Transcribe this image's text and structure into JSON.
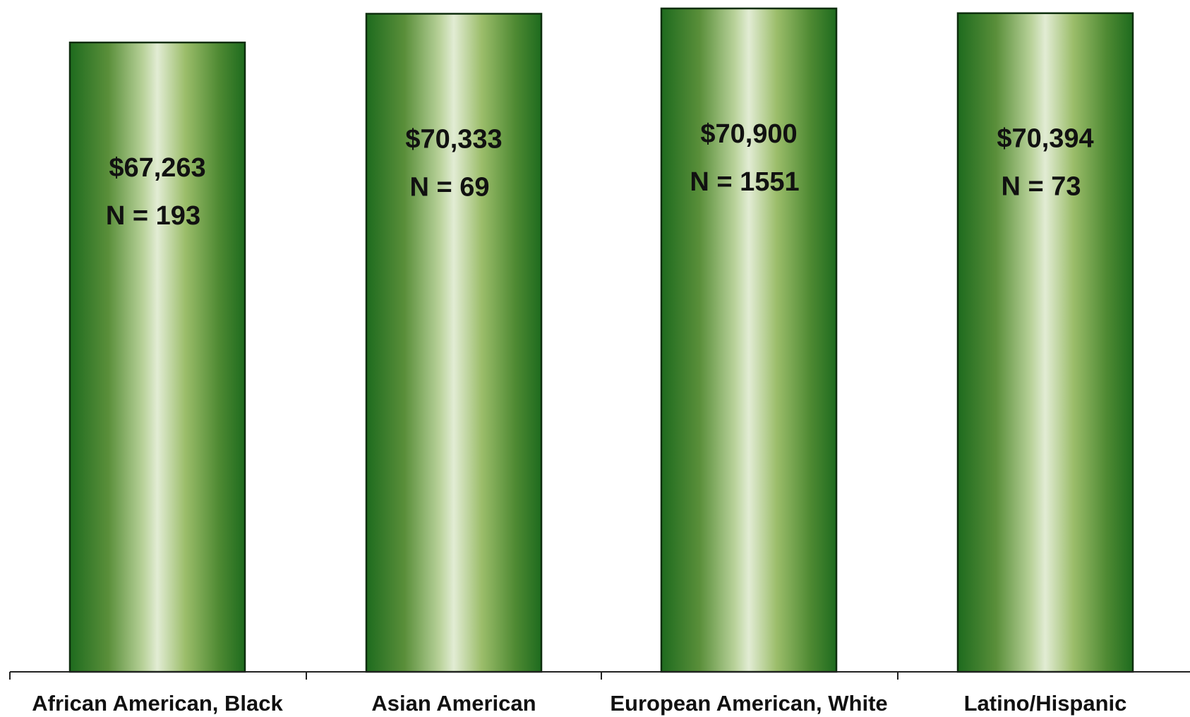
{
  "chart_data": {
    "type": "bar",
    "categories": [
      "African American, Black",
      "Asian American",
      "European American, White",
      "Latino/Hispanic"
    ],
    "values": [
      67263,
      70333,
      70900,
      70394
    ],
    "data_labels": [
      "$67,263",
      "$70,333",
      "$70,900",
      "$70,394"
    ],
    "n_labels": [
      "N = 193",
      "N = 69",
      "N = 1551",
      "N = 73"
    ],
    "title": "",
    "xlabel": "",
    "ylabel": "",
    "ylim": [
      0,
      71200
    ],
    "grid": false,
    "legend": "none",
    "colors": {
      "bar_edge": "#1e6b1e",
      "bar_mid": "#9bbd6a",
      "bar_center": "#e2ecd4",
      "bar_outline": "#0d2e0d",
      "axis": "#222222"
    }
  }
}
